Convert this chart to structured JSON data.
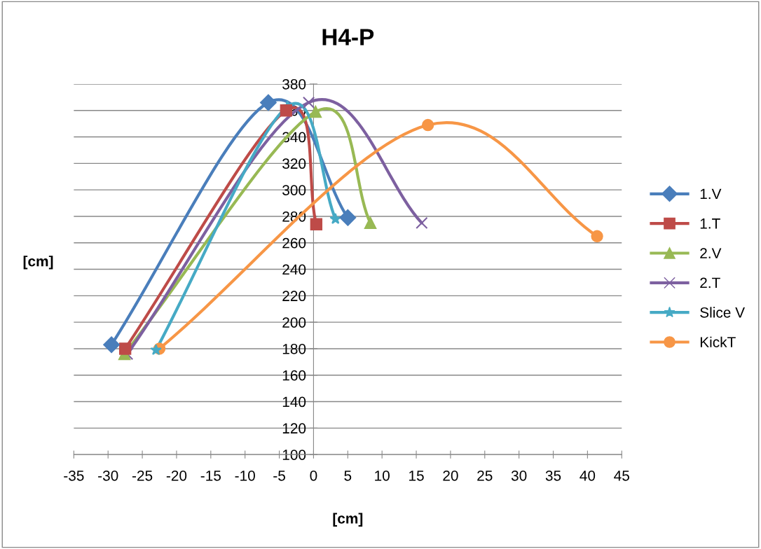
{
  "chart_data": {
    "type": "line",
    "title": "H4-P",
    "xlabel": "[cm]",
    "ylabel": "[cm]",
    "xlim": [
      -35,
      45
    ],
    "xticks": [
      -35,
      -30,
      -25,
      -20,
      -15,
      -10,
      -5,
      0,
      5,
      10,
      15,
      20,
      25,
      30,
      35,
      40,
      45
    ],
    "ylim": [
      100,
      380
    ],
    "yticks": [
      100,
      120,
      140,
      160,
      180,
      200,
      220,
      240,
      260,
      280,
      300,
      320,
      340,
      360,
      380
    ],
    "grid": "y",
    "legend": "right",
    "line_style": "solid",
    "series": [
      {
        "name": "1.V",
        "color": "#4a7ebb",
        "marker": "diamond",
        "x": [
          -29.5,
          -6.6,
          5.0
        ],
        "values": [
          183,
          366,
          279
        ]
      },
      {
        "name": "1.T",
        "color": "#be4b48",
        "marker": "square",
        "x": [
          -27.5,
          -4,
          0.4
        ],
        "values": [
          180,
          360,
          274
        ]
      },
      {
        "name": "2.V",
        "color": "#98b954",
        "marker": "triangle",
        "x": [
          -27.6,
          0.3,
          8.3
        ],
        "values": [
          176,
          359,
          275
        ]
      },
      {
        "name": "2.T",
        "color": "#7d60a0",
        "marker": "cross",
        "x": [
          -27.2,
          -0.7,
          15.8
        ],
        "values": [
          176,
          366,
          275
        ]
      },
      {
        "name": "Slice V",
        "color": "#46aac5",
        "marker": "star",
        "x": [
          -23,
          -3.8,
          3.2
        ],
        "values": [
          179,
          363,
          278
        ]
      },
      {
        "name": "KickT",
        "color": "#f79646",
        "marker": "circle",
        "x": [
          -22.5,
          16.7,
          41.4
        ],
        "values": [
          180,
          349,
          265
        ]
      }
    ]
  }
}
